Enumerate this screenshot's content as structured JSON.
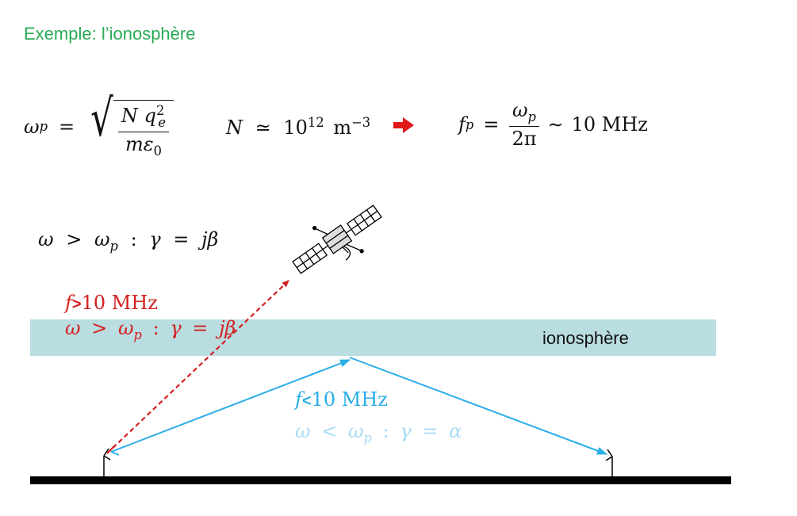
{
  "title": "Exemple: l’ionosphère",
  "eq_plasma": {
    "lhs": "ω",
    "lhs_sub": "p",
    "eq": "=",
    "num_N": "N",
    "num_q": "q",
    "num_q_sub": "e",
    "num_q_sup": "2",
    "den": "mε",
    "den_sub": "0"
  },
  "eq_density": {
    "lhs": "N",
    "rel": "≃",
    "base": "10",
    "exp": "12",
    "unit": "m",
    "unit_exp": "−3"
  },
  "eq_freq": {
    "lhs": "f",
    "lhs_sub": "p",
    "eq": "=",
    "num": "ω",
    "num_sub": "p",
    "den": "2π",
    "approx": "∼",
    "value": "10 MHz"
  },
  "eq_top": {
    "text_w": "ω",
    "op": ">",
    "wp": "ω",
    "wp_sub": "p",
    "colon": ":",
    "gamma": "γ",
    "eq": "=",
    "rhs": "jβ"
  },
  "ionosphere_label": "ionosphère",
  "red_label": {
    "f": "f",
    "op": ">",
    "value": "10 MHz",
    "w": "ω",
    "wop": ">",
    "wp": "ω",
    "wp_sub": "p",
    "colon": ":",
    "gamma": "γ",
    "eq": "=",
    "rhs": "jβ"
  },
  "blue_label": {
    "f": "f",
    "op": "<",
    "value": "10 MHz",
    "w": "ω",
    "wop": "<",
    "wp": "ω",
    "wp_sub": "p",
    "colon": ":",
    "gamma": "γ",
    "eq": "=",
    "rhs": "α"
  },
  "colors": {
    "title": "#2bab57",
    "red": "#d42020",
    "blue": "#29aee6",
    "band": "#b9dde1"
  },
  "icons": [
    "satellite-icon",
    "right-arrow-icon",
    "antenna-icon"
  ]
}
